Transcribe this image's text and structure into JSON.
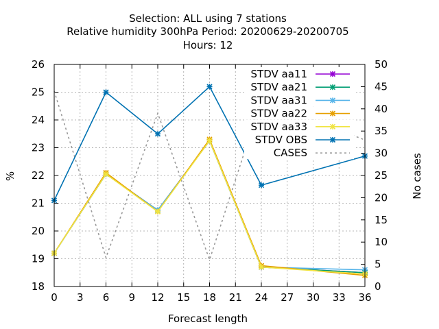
{
  "chart_data": {
    "type": "line",
    "title_lines": [
      "Selection: ALL using     7 stations",
      "Relative humidity 300hPa   Period: 20200629-20200705",
      "Hours:  12"
    ],
    "xlabel": "Forecast length",
    "ylabel": "%",
    "y2label": "No cases",
    "xlim": [
      0,
      36
    ],
    "ylim": [
      18,
      26
    ],
    "y2lim": [
      0,
      50
    ],
    "xticks": [
      0,
      3,
      6,
      9,
      12,
      15,
      18,
      21,
      24,
      27,
      30,
      33,
      36
    ],
    "yticks": [
      18,
      19,
      20,
      21,
      22,
      23,
      24,
      25,
      26
    ],
    "y2ticks": [
      0,
      5,
      10,
      15,
      20,
      25,
      30,
      35,
      40,
      45,
      50
    ],
    "grid": true,
    "legend_position": "top-right",
    "series": [
      {
        "name": "STDV aa11",
        "color": "#9400d3",
        "axis": "y",
        "dash": false,
        "marker": true,
        "points": [
          [
            0,
            19.2
          ],
          [
            6,
            22.05
          ],
          [
            12,
            20.75
          ],
          [
            18,
            23.25
          ],
          [
            24,
            18.7
          ],
          [
            36,
            18.5
          ]
        ]
      },
      {
        "name": "STDV aa21",
        "color": "#009e73",
        "axis": "y",
        "dash": false,
        "marker": true,
        "points": [
          [
            0,
            19.2
          ],
          [
            6,
            22.05
          ],
          [
            12,
            20.75
          ],
          [
            18,
            23.25
          ],
          [
            24,
            18.7
          ],
          [
            36,
            18.5
          ]
        ]
      },
      {
        "name": "STDV aa31",
        "color": "#56b4e9",
        "axis": "y",
        "dash": false,
        "marker": true,
        "points": [
          [
            0,
            19.2
          ],
          [
            6,
            22.05
          ],
          [
            12,
            20.75
          ],
          [
            18,
            23.25
          ],
          [
            24,
            18.7
          ],
          [
            36,
            18.6
          ]
        ]
      },
      {
        "name": "STDV aa22",
        "color": "#e69f00",
        "axis": "y",
        "dash": false,
        "marker": true,
        "points": [
          [
            0,
            19.2
          ],
          [
            6,
            22.1
          ],
          [
            12,
            20.7
          ],
          [
            18,
            23.3
          ],
          [
            24,
            18.75
          ],
          [
            36,
            18.4
          ]
        ]
      },
      {
        "name": "STDV aa33",
        "color": "#f0e442",
        "axis": "y",
        "dash": false,
        "marker": true,
        "points": [
          [
            0,
            19.2
          ],
          [
            6,
            22.05
          ],
          [
            12,
            20.7
          ],
          [
            18,
            23.25
          ],
          [
            24,
            18.7
          ],
          [
            36,
            18.45
          ]
        ]
      },
      {
        "name": "STDV OBS",
        "color": "#0072b2",
        "axis": "y",
        "dash": false,
        "marker": true,
        "points": [
          [
            0,
            21.1
          ],
          [
            6,
            25.0
          ],
          [
            12,
            23.5
          ],
          [
            18,
            25.2
          ],
          [
            24,
            21.65
          ],
          [
            36,
            22.7
          ]
        ]
      },
      {
        "name": "CASES",
        "color": "#999999",
        "axis": "y2",
        "dash": true,
        "marker": false,
        "points": [
          [
            0,
            44
          ],
          [
            6,
            6.5
          ],
          [
            12,
            39
          ],
          [
            18,
            6
          ],
          [
            24,
            42
          ],
          [
            36,
            33
          ]
        ]
      }
    ]
  }
}
